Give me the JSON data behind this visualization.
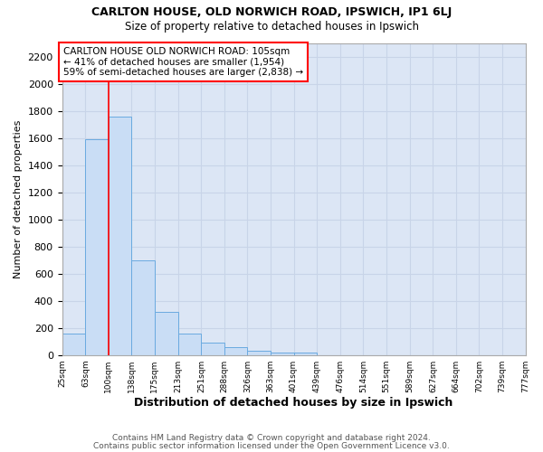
{
  "title1": "CARLTON HOUSE, OLD NORWICH ROAD, IPSWICH, IP1 6LJ",
  "title2": "Size of property relative to detached houses in Ipswich",
  "xlabel": "Distribution of detached houses by size in Ipswich",
  "ylabel": "Number of detached properties",
  "footnote1": "Contains HM Land Registry data © Crown copyright and database right 2024.",
  "footnote2": "Contains public sector information licensed under the Open Government Licence v3.0.",
  "annotation_line1": "CARLTON HOUSE OLD NORWICH ROAD: 105sqm",
  "annotation_line2": "← 41% of detached houses are smaller (1,954)",
  "annotation_line3": "59% of semi-detached houses are larger (2,838) →",
  "bar_color": "#c9ddf5",
  "bar_edge_color": "#6aaae0",
  "property_line_x": 100,
  "bin_edges": [
    25,
    63,
    100,
    138,
    175,
    213,
    251,
    288,
    326,
    363,
    401,
    439,
    476,
    514,
    551,
    589,
    627,
    664,
    702,
    739,
    777
  ],
  "bin_labels": [
    "25sqm",
    "63sqm",
    "100sqm",
    "138sqm",
    "175sqm",
    "213sqm",
    "251sqm",
    "288sqm",
    "326sqm",
    "363sqm",
    "401sqm",
    "439sqm",
    "476sqm",
    "514sqm",
    "551sqm",
    "589sqm",
    "627sqm",
    "664sqm",
    "702sqm",
    "739sqm",
    "777sqm"
  ],
  "bar_heights": [
    155,
    1590,
    1760,
    700,
    315,
    155,
    90,
    55,
    30,
    20,
    20,
    0,
    0,
    0,
    0,
    0,
    0,
    0,
    0,
    0
  ],
  "ylim": [
    0,
    2300
  ],
  "yticks": [
    0,
    200,
    400,
    600,
    800,
    1000,
    1200,
    1400,
    1600,
    1800,
    2000,
    2200
  ],
  "grid_color": "#c8d4e8",
  "background_color": "#dce6f5"
}
